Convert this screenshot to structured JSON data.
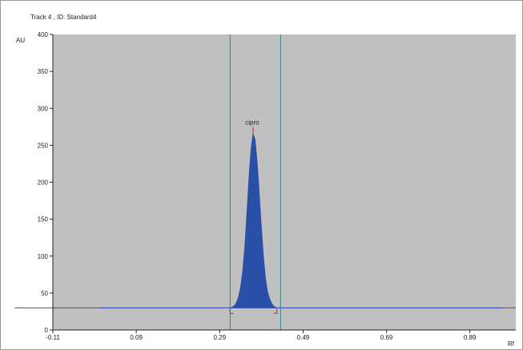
{
  "chart_data": {
    "type": "area",
    "title": "Track  4 , ID: Standard4",
    "xlabel": "Rf",
    "ylabel": "AU",
    "xlim": [
      -0.11,
      1.0
    ],
    "ylim": [
      0,
      400
    ],
    "x_ticks": [
      -0.11,
      0.09,
      0.29,
      0.49,
      0.69,
      0.89
    ],
    "x_tick_labels": [
      "-0.11",
      "0.09",
      "0.29",
      "0.49",
      "0.69",
      "0.89"
    ],
    "y_ticks": [
      0,
      50,
      100,
      150,
      200,
      250,
      300,
      350,
      400
    ],
    "y_tick_labels": [
      "0",
      "50",
      "100",
      "150",
      "200",
      "250",
      "300",
      "350",
      "400"
    ],
    "baseline_au": 30,
    "grid": false,
    "colors": {
      "plot_background": "#c0c0c0",
      "peak_fill": "#2a4fa6",
      "baseline_line": "#2b3fbf",
      "integration_lines": "#2e8b86",
      "marker": "#e0302a"
    },
    "integration_limits": [
      0.315,
      0.436
    ],
    "peaks": [
      {
        "name": "cipro",
        "start": 0.315,
        "max": 0.37,
        "end": 0.427,
        "height_au": 266,
        "profile": [
          [
            0.315,
            30
          ],
          [
            0.32,
            31
          ],
          [
            0.325,
            33
          ],
          [
            0.33,
            37
          ],
          [
            0.335,
            45
          ],
          [
            0.34,
            58
          ],
          [
            0.345,
            80
          ],
          [
            0.35,
            112
          ],
          [
            0.355,
            158
          ],
          [
            0.36,
            205
          ],
          [
            0.365,
            245
          ],
          [
            0.37,
            266
          ],
          [
            0.375,
            258
          ],
          [
            0.38,
            228
          ],
          [
            0.385,
            185
          ],
          [
            0.39,
            140
          ],
          [
            0.395,
            100
          ],
          [
            0.4,
            70
          ],
          [
            0.405,
            52
          ],
          [
            0.41,
            42
          ],
          [
            0.415,
            36
          ],
          [
            0.42,
            32
          ],
          [
            0.427,
            30
          ]
        ]
      }
    ]
  }
}
